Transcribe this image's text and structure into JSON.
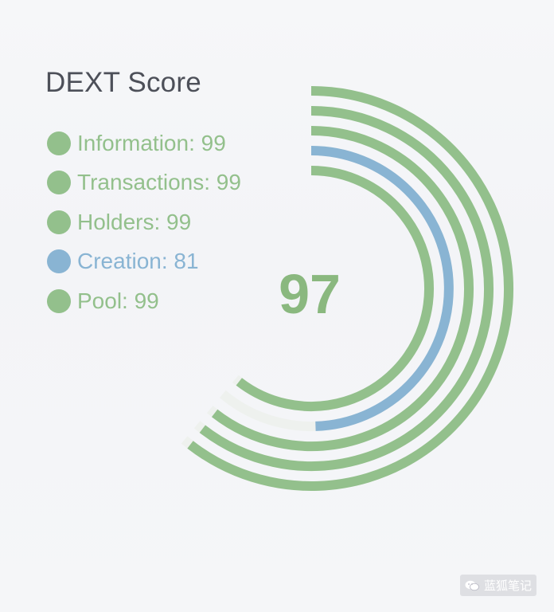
{
  "chart_data": {
    "type": "radial-bar",
    "title": "DEXT Score",
    "total_score": "97",
    "max": 100,
    "series": [
      {
        "name": "Information",
        "value": 99,
        "color": "#93c08c"
      },
      {
        "name": "Transactions",
        "value": 99,
        "color": "#93c08c"
      },
      {
        "name": "Holders",
        "value": 99,
        "color": "#93c08c"
      },
      {
        "name": "Creation",
        "value": 81,
        "color": "#89b4d3"
      },
      {
        "name": "Pool",
        "value": 99,
        "color": "#93c08c"
      }
    ],
    "score_color": "#8ab87f"
  },
  "watermark": {
    "text": "蓝狐笔记",
    "icon": "wechat-icon"
  }
}
